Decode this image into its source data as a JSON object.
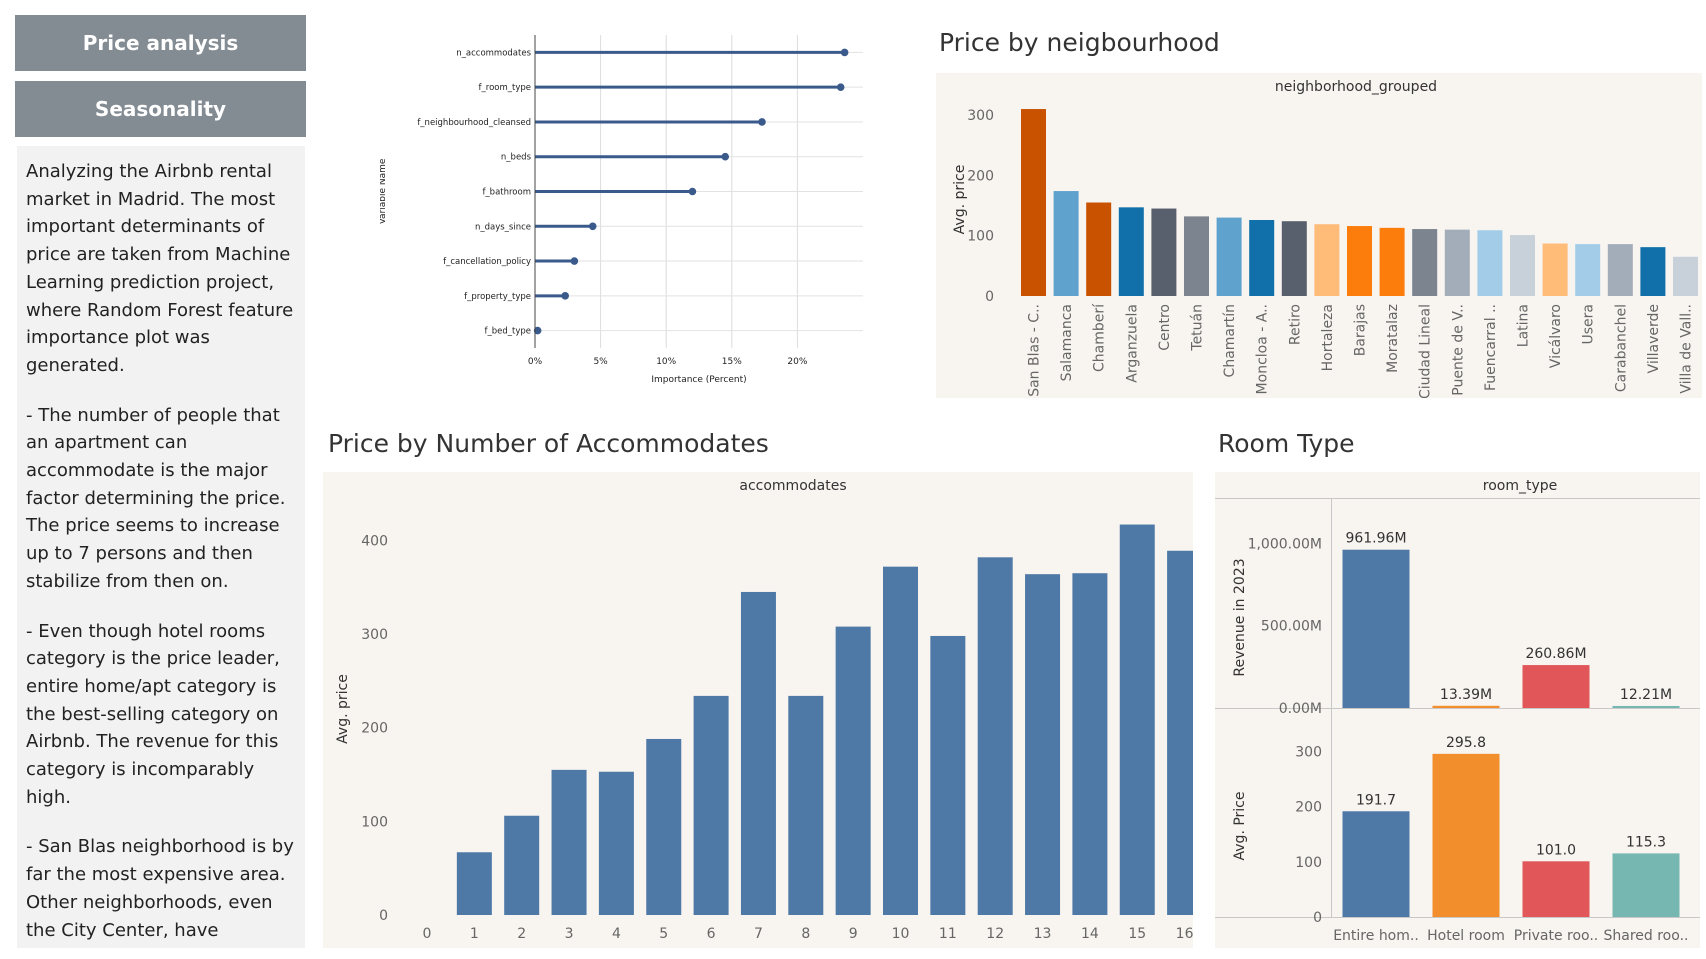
{
  "nav": {
    "price_analysis": "Price analysis",
    "seasonality": "Seasonality"
  },
  "description": [
    "Analyzing the Airbnb rental market in Madrid. The most important determinants of price are taken from Machine Learning prediction project, where Random Forest feature importance plot was generated.",
    "- The number of people that an apartment can accommodate is the major factor determining the price. The price seems to increase up to 7 persons and then stabilize from then on.",
    "- Even though hotel rooms category is the price leader, entire home/apt category is the best-selling category on Airbnb. The revenue for this category is incomparably high.",
    "- San Blas neighborhood is by far the most expensive area. Other neighborhoods, even the City Center, have relative.."
  ],
  "colors": {
    "nav_bg": "#838b93",
    "panel_bg": "#f8f4f0",
    "bar_blue": "#4e79a7",
    "orange": "#f28e2b",
    "red": "#e15759",
    "teal": "#76b7b2",
    "lollipop": "#3a5a8c"
  },
  "chart_data": [
    {
      "id": "feature_importance",
      "type": "lollipop",
      "xlabel": "Importance (Percent)",
      "ylabel": "Variable Name",
      "xticks": [
        "0%",
        "5%",
        "10%",
        "15%",
        "20%"
      ],
      "xlim": [
        0,
        25
      ],
      "categories": [
        "n_accommodates",
        "f_room_type",
        "f_neighbourhood_cleansed",
        "n_beds",
        "f_bathroom",
        "n_days_since",
        "f_cancellation_policy",
        "f_property_type",
        "f_bed_type"
      ],
      "values": [
        23.6,
        23.3,
        17.3,
        14.5,
        12.0,
        4.4,
        3.0,
        2.3,
        0.2
      ]
    },
    {
      "id": "price_by_neighbourhood",
      "type": "bar",
      "title": "Price by neigbourhood",
      "header": "neighborhood_grouped",
      "ylabel": "Avg. price",
      "yticks": [
        0,
        100,
        200,
        300
      ],
      "ylim": [
        0,
        320
      ],
      "categories": [
        "San Blas - C..",
        "Salamanca",
        "Chamberí",
        "Arganzuela",
        "Centro",
        "Tetuán",
        "Chamartín",
        "Moncloa - A..",
        "Retiro",
        "Hortaleza",
        "Barajas",
        "Moratalaz",
        "Ciudad Lineal",
        "Puente de V..",
        "Fuencarral ..",
        "Latina",
        "Vicálvaro",
        "Usera",
        "Carabanchel",
        "Villaverde",
        "Villa de Vall.."
      ],
      "values": [
        310,
        174,
        155,
        147,
        145,
        132,
        130,
        126,
        124,
        119,
        116,
        113,
        111,
        110,
        109,
        101,
        87,
        86,
        86,
        81,
        65
      ],
      "colors": [
        "#c85200",
        "#5fa2ce",
        "#c85200",
        "#1170aa",
        "#57606c",
        "#7b848f",
        "#5fa2ce",
        "#1170aa",
        "#57606c",
        "#ffbc79",
        "#fc7d0b",
        "#fc7d0b",
        "#7b848f",
        "#a3acb9",
        "#a3cce9",
        "#c8d0d9",
        "#ffbc79",
        "#a3cce9",
        "#a3acb9",
        "#1170aa",
        "#c8d0d9"
      ]
    },
    {
      "id": "price_by_accommodates",
      "type": "bar",
      "title": "Price by Number of Accommodates",
      "header": "accommodates",
      "ylabel": "Avg. price",
      "yticks": [
        0,
        100,
        200,
        300,
        400
      ],
      "ylim": [
        0,
        440
      ],
      "categories": [
        "0",
        "1",
        "2",
        "3",
        "4",
        "5",
        "6",
        "7",
        "8",
        "9",
        "10",
        "11",
        "12",
        "13",
        "14",
        "15",
        "16"
      ],
      "values": [
        0,
        67,
        106,
        155,
        153,
        188,
        234,
        345,
        234,
        308,
        372,
        298,
        382,
        364,
        365,
        417,
        389
      ]
    },
    {
      "id": "room_type",
      "type": "bar",
      "title": "Room Type",
      "header": "room_type",
      "categories": [
        "Entire hom..",
        "Hotel room",
        "Private roo..",
        "Shared roo.."
      ],
      "colors": [
        "#4e79a7",
        "#f28e2b",
        "#e15759",
        "#76b7b2"
      ],
      "series": [
        {
          "name": "Revenue in 2023",
          "values": [
            961.96,
            13.39,
            260.86,
            12.21
          ],
          "labels": [
            "961.96M",
            "13.39M",
            "260.86M",
            "12.21M"
          ],
          "yticks": [
            "0.00M",
            "500.00M",
            "1,000.00M"
          ],
          "ytick_values": [
            0,
            500,
            1000
          ],
          "ylim": [
            0,
            1100
          ]
        },
        {
          "name": "Avg. Price",
          "values": [
            191.7,
            295.8,
            101.0,
            115.3
          ],
          "labels": [
            "191.7",
            "295.8",
            "101.0",
            "115.3"
          ],
          "yticks": [
            "0",
            "100",
            "200",
            "300"
          ],
          "ytick_values": [
            0,
            100,
            200,
            300
          ],
          "ylim": [
            0,
            330
          ]
        }
      ]
    }
  ]
}
